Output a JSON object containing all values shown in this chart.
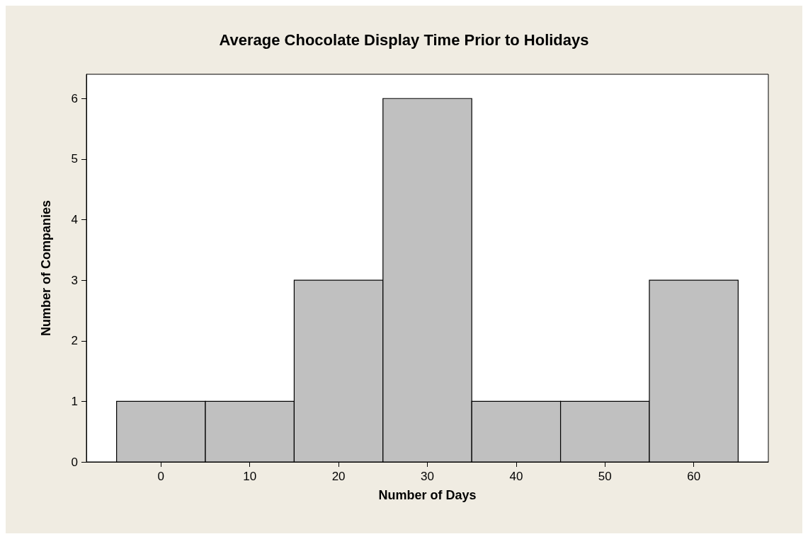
{
  "chart_data": {
    "type": "histogram",
    "title": "Average Chocolate Display Time Prior to Holidays",
    "xlabel": "Number of Days",
    "ylabel": "Number of Companies",
    "bins": [
      -5,
      5,
      15,
      25,
      35,
      45,
      55,
      65
    ],
    "values": [
      1,
      1,
      3,
      6,
      1,
      1,
      3
    ],
    "color": "#c0c0c0",
    "xlim": [
      -8.4,
      68.4
    ],
    "xticks": [
      0,
      10,
      20,
      30,
      40,
      50,
      60
    ],
    "ylim": [
      0,
      6.4
    ],
    "yticks": [
      0,
      1,
      2,
      3,
      4,
      5,
      6
    ],
    "grid": false
  }
}
